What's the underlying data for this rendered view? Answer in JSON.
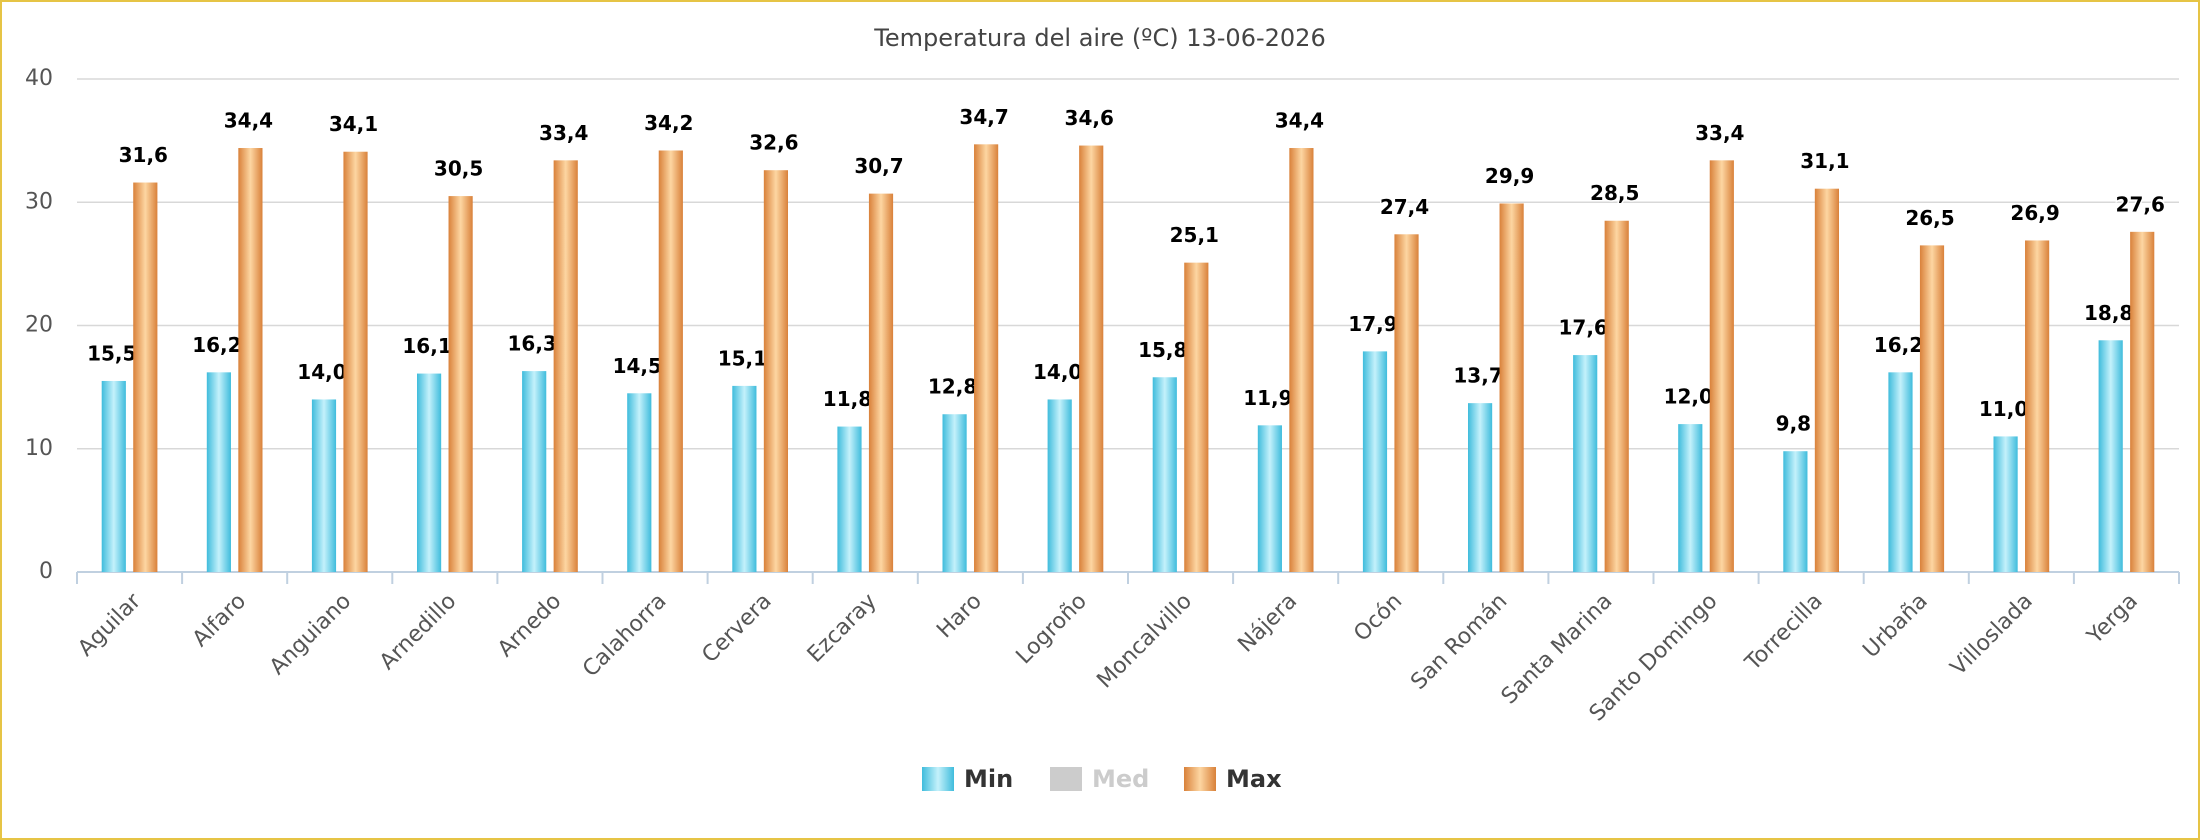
{
  "chart_data": {
    "type": "bar",
    "title": "Temperatura del aire (ºC) 13-06-2026",
    "categories": [
      "Aguilar",
      "Alfaro",
      "Anguiano",
      "Arnedillo",
      "Arnedo",
      "Calahorra",
      "Cervera",
      "Ezcaray",
      "Haro",
      "Logroño",
      "Moncalvillo",
      "Nájera",
      "Ocón",
      "San Román",
      "Santa Marina",
      "Santo Domingo",
      "Torrecilla",
      "Urbaña",
      "Villoslada",
      "Yerga"
    ],
    "series": [
      {
        "name": "Min",
        "color": "#4fc6e2",
        "visible": true,
        "values": [
          15.5,
          16.2,
          14.0,
          16.1,
          16.3,
          14.5,
          15.1,
          11.8,
          12.8,
          14.0,
          15.8,
          11.9,
          17.9,
          13.7,
          17.6,
          12.0,
          9.8,
          16.2,
          11.0,
          18.8
        ],
        "value_labels": [
          "15,5",
          "16,2",
          "14,0",
          "16,1",
          "16,3",
          "14,5",
          "15,1",
          "11,8",
          "12,8",
          "14,0",
          "15,8",
          "11,9",
          "17,9",
          "13,7",
          "17,6",
          "12,0",
          "9,8",
          "16,2",
          "11,0",
          "18,8"
        ]
      },
      {
        "name": "Med",
        "color": "#cccccc",
        "visible": false,
        "values": [
          null,
          null,
          null,
          null,
          null,
          null,
          null,
          null,
          null,
          null,
          null,
          null,
          null,
          null,
          null,
          null,
          null,
          null,
          null,
          null
        ]
      },
      {
        "name": "Max",
        "color": "#e08d46",
        "visible": true,
        "values": [
          31.6,
          34.4,
          34.1,
          30.5,
          33.4,
          34.2,
          32.6,
          30.7,
          34.7,
          34.6,
          25.1,
          34.4,
          27.4,
          29.9,
          28.5,
          33.4,
          31.1,
          26.5,
          26.9,
          27.6
        ],
        "value_labels": [
          "31,6",
          "34,4",
          "34,1",
          "30,5",
          "33,4",
          "34,2",
          "32,6",
          "30,7",
          "34,7",
          "34,6",
          "25,1",
          "34,4",
          "27,4",
          "29,9",
          "28,5",
          "33,4",
          "31,1",
          "26,5",
          "26,9",
          "27,6"
        ]
      }
    ],
    "ylim": [
      0,
      40
    ],
    "yticks": [
      0,
      10,
      20,
      30,
      40
    ],
    "grid": true,
    "legend": "bottom"
  }
}
